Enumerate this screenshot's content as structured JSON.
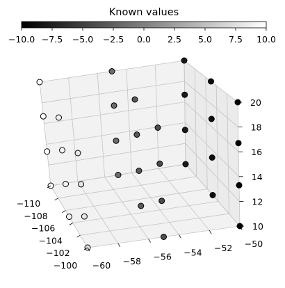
{
  "chart_data": {
    "type": "scatter",
    "projection": "3d",
    "title": "Known values",
    "colormap": "gray",
    "colorbar": {
      "orientation": "horizontal",
      "placement": "top",
      "range": [
        -10,
        10
      ],
      "ticks": [
        "−10.0",
        "−7.5",
        "−5.0",
        "−2.5",
        "0.0",
        "2.5",
        "5.0",
        "7.5",
        "10.0"
      ]
    },
    "xlabel": "",
    "ylabel": "",
    "zlabel": "",
    "xlim": [
      -110,
      -100
    ],
    "ylim": [
      -60,
      -50
    ],
    "zlim": [
      10,
      20
    ],
    "x_ticks": [
      "−110",
      "−108",
      "−106",
      "−104",
      "−102",
      "−100"
    ],
    "y_ticks": [
      "−60",
      "−58",
      "−56",
      "−54",
      "−52",
      "−50"
    ],
    "z_ticks": [
      "10",
      "12",
      "14",
      "16",
      "18",
      "20"
    ],
    "grid": true,
    "points": [
      {
        "x": -110,
        "y": -60,
        "z": 20,
        "value": 10
      },
      {
        "x": -110,
        "y": -60,
        "z": 16.7,
        "value": 10
      },
      {
        "x": -110,
        "y": -60,
        "z": 13.3,
        "value": 10
      },
      {
        "x": -110,
        "y": -60,
        "z": 10,
        "value": 10
      },
      {
        "x": -105,
        "y": -60,
        "z": 20,
        "value": 9
      },
      {
        "x": -105,
        "y": -60,
        "z": 16.7,
        "value": 9
      },
      {
        "x": -105,
        "y": -60,
        "z": 13.3,
        "value": 9
      },
      {
        "x": -105,
        "y": -60,
        "z": 10,
        "value": 9
      },
      {
        "x": -100,
        "y": -60,
        "z": 20,
        "value": 8
      },
      {
        "x": -100,
        "y": -60,
        "z": 16.7,
        "value": 8
      },
      {
        "x": -100,
        "y": -60,
        "z": 13.3,
        "value": 8
      },
      {
        "x": -100,
        "y": -60,
        "z": 10,
        "value": 8
      },
      {
        "x": -110,
        "y": -55,
        "z": 20,
        "value": -1.5
      },
      {
        "x": -110,
        "y": -55,
        "z": 16.7,
        "value": -1.5
      },
      {
        "x": -110,
        "y": -55,
        "z": 13.3,
        "value": -1.5
      },
      {
        "x": -110,
        "y": -55,
        "z": 10,
        "value": -1.5
      },
      {
        "x": -105,
        "y": -55,
        "z": 20,
        "value": -3
      },
      {
        "x": -105,
        "y": -55,
        "z": 16.7,
        "value": -3
      },
      {
        "x": -105,
        "y": -55,
        "z": 13.3,
        "value": -3
      },
      {
        "x": -105,
        "y": -55,
        "z": 10,
        "value": -3
      },
      {
        "x": -100,
        "y": -55,
        "z": 20,
        "value": -4
      },
      {
        "x": -100,
        "y": -55,
        "z": 16.7,
        "value": -4
      },
      {
        "x": -100,
        "y": -55,
        "z": 13.3,
        "value": -4
      },
      {
        "x": -100,
        "y": -55,
        "z": 10,
        "value": -4
      },
      {
        "x": -110,
        "y": -50,
        "z": 20,
        "value": -8
      },
      {
        "x": -110,
        "y": -50,
        "z": 16.7,
        "value": -8
      },
      {
        "x": -110,
        "y": -50,
        "z": 13.3,
        "value": -8
      },
      {
        "x": -110,
        "y": -50,
        "z": 10,
        "value": -8
      },
      {
        "x": -105,
        "y": -50,
        "z": 20,
        "value": -9
      },
      {
        "x": -105,
        "y": -50,
        "z": 16.7,
        "value": -9
      },
      {
        "x": -105,
        "y": -50,
        "z": 13.3,
        "value": -9
      },
      {
        "x": -105,
        "y": -50,
        "z": 10,
        "value": -9
      },
      {
        "x": -100,
        "y": -50,
        "z": 20,
        "value": -10
      },
      {
        "x": -100,
        "y": -50,
        "z": 16.7,
        "value": -10
      },
      {
        "x": -100,
        "y": -50,
        "z": 13.3,
        "value": -10
      },
      {
        "x": -100,
        "y": -50,
        "z": 10,
        "value": -10
      }
    ]
  }
}
